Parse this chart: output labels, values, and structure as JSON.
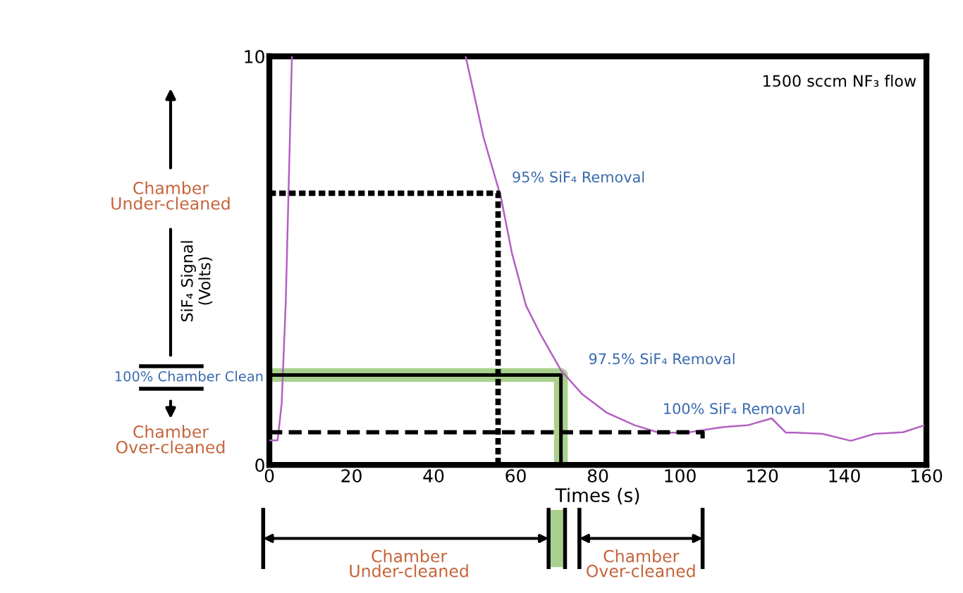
{
  "chart_data": {
    "type": "line",
    "xlabel": "Times (s)",
    "ylabel": "SiF₄ Signal\n(Volts)",
    "xlim": [
      0,
      160
    ],
    "ylim": [
      0,
      10
    ],
    "xticks": [
      0,
      20,
      40,
      60,
      80,
      100,
      120,
      140,
      160
    ],
    "yticks": [
      0,
      10
    ],
    "grid": false,
    "legend": false,
    "marker": "none",
    "series": [
      {
        "color": "#b45fc4",
        "line_style": "solid",
        "x": [
          0,
          2,
          3,
          4,
          5,
          5.5,
          6,
          47.8,
          52.2,
          56.4,
          59.1,
          62.5,
          66,
          71.1,
          76.3,
          82.1,
          89,
          94.8,
          101.7,
          110.7,
          116.5,
          122.3,
          125.8,
          128,
          134.7,
          141.6,
          147.4,
          154.3,
          159.5
        ],
        "values": [
          0.6,
          0.6,
          1.5,
          4,
          8,
          10,
          null,
          10,
          8,
          6.55,
          5.17,
          3.9,
          3.2,
          2.3,
          1.72,
          1.28,
          0.97,
          0.79,
          0.79,
          0.93,
          0.97,
          1.14,
          0.79,
          0.79,
          0.76,
          0.59,
          0.76,
          0.8,
          0.97
        ]
      },
      {
        "color": "#000000",
        "line_style": "dotted",
        "x": [
          0,
          55.7,
          55.7
        ],
        "values": [
          6.65,
          6.65,
          0
        ]
      },
      {
        "color": "#a9d18e",
        "line_style": "solid",
        "x": [
          0,
          71,
          71
        ],
        "values": [
          2.2,
          2.2,
          0
        ]
      },
      {
        "color": "#000000",
        "line_style": "solid",
        "x": [
          0,
          71,
          71
        ],
        "values": [
          2.2,
          2.2,
          0
        ]
      },
      {
        "color": "#000000",
        "line_style": "dashed",
        "x": [
          0,
          105.5,
          105.5
        ],
        "values": [
          0.8,
          0.8,
          0.55
        ]
      }
    ],
    "annotations": [
      {
        "text": "1500 sccm NF₃ flow"
      },
      {
        "text": "95% SiF₄ Removal",
        "x": 55.7,
        "y": 6.65
      },
      {
        "text": "97.5% SiF₄ Removal",
        "x": 71,
        "y": 2.2
      },
      {
        "text": "100% SiF₄ Removal",
        "x": 94.8,
        "y": 0.79
      },
      {
        "text": "Chamber\nUnder-cleaned"
      },
      {
        "text": "100% Chamber Clean"
      },
      {
        "text": "Chamber\nOver-cleaned"
      },
      {
        "text": "Chamber\nUnder-cleaned"
      },
      {
        "text": "Chamber\nOver-cleaned"
      }
    ]
  }
}
